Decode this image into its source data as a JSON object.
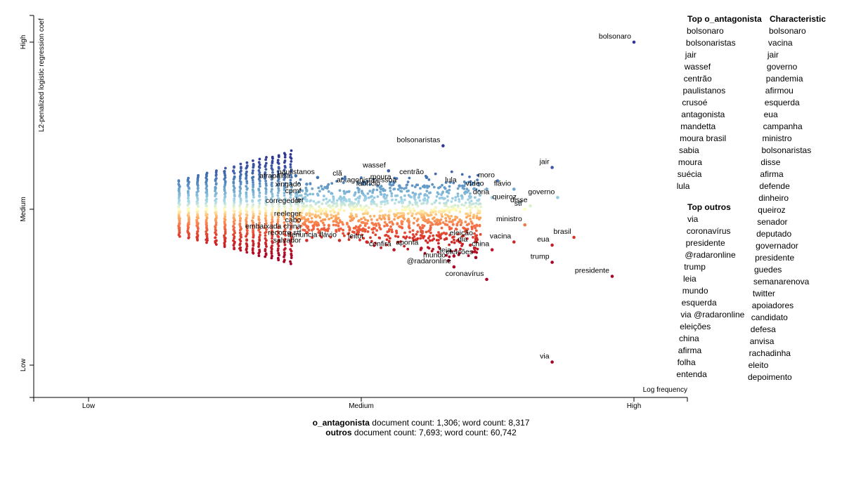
{
  "chart_data": {
    "type": "scatter",
    "xlabel": "Log frequency",
    "ylabel": "L2-penalized logistic regression coef",
    "x_ticks": [
      "Low",
      "Medium",
      "High"
    ],
    "y_ticks": [
      "High",
      "Medium",
      "Low"
    ],
    "xlim": [
      0,
      1.2
    ],
    "ylim": [
      -1.05,
      1.05
    ],
    "colors": {
      "high": "#313695",
      "mid": "#ffffbf",
      "low": "#a50026"
    },
    "labeled_points": [
      {
        "term": "bolsonaro",
        "x": 1.0,
        "y": 1.0
      },
      {
        "term": "bolsonaristas",
        "x": 0.65,
        "y": 0.38
      },
      {
        "term": "jair",
        "x": 0.85,
        "y": 0.25
      },
      {
        "term": "wassef",
        "x": 0.55,
        "y": 0.23
      },
      {
        "term": "moro",
        "x": 0.75,
        "y": 0.17
      },
      {
        "term": "centrão",
        "x": 0.62,
        "y": 0.19
      },
      {
        "term": "lula",
        "x": 0.68,
        "y": 0.14
      },
      {
        "term": "vídeo",
        "x": 0.73,
        "y": 0.12
      },
      {
        "term": "flávio",
        "x": 0.78,
        "y": 0.12
      },
      {
        "term": "doria",
        "x": 0.74,
        "y": 0.07
      },
      {
        "term": "governo",
        "x": 0.86,
        "y": 0.07
      },
      {
        "term": "queiroz",
        "x": 0.79,
        "y": 0.04
      },
      {
        "term": "stf",
        "x": 0.8,
        "y": 0.0
      },
      {
        "term": "disse",
        "x": 0.81,
        "y": 0.02
      },
      {
        "term": "antagonista",
        "x": 0.53,
        "y": 0.14
      },
      {
        "term": "moura",
        "x": 0.56,
        "y": 0.16
      },
      {
        "term": "pessoa",
        "x": 0.57,
        "y": 0.14
      },
      {
        "term": "fabrício",
        "x": 0.54,
        "y": 0.12
      },
      {
        "term": "paulistanos",
        "x": 0.42,
        "y": 0.19
      },
      {
        "term": "clã",
        "x": 0.47,
        "y": 0.18
      },
      {
        "term": "atrapalha",
        "x": 0.38,
        "y": 0.2
      },
      {
        "term": "xingado",
        "x": 0.4,
        "y": 0.15
      },
      {
        "term": "cpmf",
        "x": 0.4,
        "y": 0.11
      },
      {
        "term": "corregedor",
        "x": 0.4,
        "y": 0.05
      },
      {
        "term": "ler",
        "x": 0.4,
        "y": 0.02
      },
      {
        "term": "reeleger",
        "x": 0.4,
        "y": -0.03
      },
      {
        "term": "cabo",
        "x": 0.4,
        "y": -0.07
      },
      {
        "term": "embaixada china",
        "x": 0.4,
        "y": -0.11
      },
      {
        "term": "recorre stf",
        "x": 0.4,
        "y": -0.15
      },
      {
        "term": "salvador",
        "x": 0.4,
        "y": -0.2
      },
      {
        "term": "denuncia flávio",
        "x": 0.46,
        "y": -0.2
      },
      {
        "term": "leitor",
        "x": 0.51,
        "y": -0.21
      },
      {
        "term": "confira",
        "x": 0.56,
        "y": -0.26
      },
      {
        "term": "aponta",
        "x": 0.61,
        "y": -0.25
      },
      {
        "term": "leia",
        "x": 0.67,
        "y": -0.3
      },
      {
        "term": "mundo",
        "x": 0.66,
        "y": -0.33
      },
      {
        "term": "eleição",
        "x": 0.71,
        "y": -0.19
      },
      {
        "term": "dia",
        "x": 0.7,
        "y": -0.23
      },
      {
        "term": "china",
        "x": 0.74,
        "y": -0.26
      },
      {
        "term": "vacina",
        "x": 0.78,
        "y": -0.21
      },
      {
        "term": "eua",
        "x": 0.85,
        "y": -0.23
      },
      {
        "term": "ministro",
        "x": 0.8,
        "y": -0.1
      },
      {
        "term": "brasil",
        "x": 0.89,
        "y": -0.18
      },
      {
        "term": "eleições",
        "x": 0.71,
        "y": -0.31
      },
      {
        "term": "trump",
        "x": 0.85,
        "y": -0.34
      },
      {
        "term": "@radaronline",
        "x": 0.67,
        "y": -0.37
      },
      {
        "term": "coronavírus",
        "x": 0.73,
        "y": -0.45
      },
      {
        "term": "presidente",
        "x": 0.96,
        "y": -0.43
      },
      {
        "term": "via",
        "x": 0.85,
        "y": -0.98
      }
    ]
  },
  "top_o_antagonista": {
    "title": "Top o_antagonista",
    "terms": [
      "bolsonaro",
      "bolsonaristas",
      "jair",
      "wassef",
      "centrão",
      "paulistanos",
      "crusoé",
      "antagonista",
      "mandetta",
      "moura brasil",
      "sabia",
      "moura",
      "suécia",
      "lula"
    ]
  },
  "top_outros": {
    "title": "Top outros",
    "terms": [
      "via",
      "coronavírus",
      "presidente",
      "@radaronline",
      "trump",
      "leia",
      "mundo",
      "esquerda",
      "via @radaronline",
      "eleições",
      "china",
      "afirma",
      "folha",
      "entenda"
    ]
  },
  "characteristic": {
    "title": "Characteristic",
    "terms": [
      "bolsonaro",
      "vacina",
      "jair",
      "governo",
      "pandemia",
      "afirmou",
      "esquerda",
      "eua",
      "campanha",
      "ministro",
      "bolsonaristas",
      "disse",
      "afirma",
      "defende",
      "dinheiro",
      "queiroz",
      "senador",
      "deputado",
      "governador",
      "presidente",
      "guedes",
      "semanarenova",
      "twitter",
      "apoiadores",
      "candidato",
      "defesa",
      "anvisa",
      "rachadinha",
      "eleito",
      "depoimento"
    ]
  },
  "footer": {
    "cat1_name": "o_antagonista",
    "cat1_text": " document count: 1,306; word count: 8,317",
    "cat2_name": "outros",
    "cat2_text": " document count: 7,693; word count: 60,742"
  }
}
